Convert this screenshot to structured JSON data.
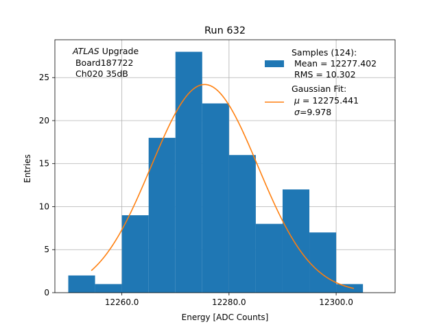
{
  "chart_data": {
    "type": "bar",
    "title": "Run 632",
    "xlabel": "Energy [ADC Counts]",
    "ylabel": "Entries",
    "xlim": [
      12247.5,
      12311.0
    ],
    "ylim": [
      0,
      29.4
    ],
    "xticks": [
      12260.0,
      12280.0,
      12300.0
    ],
    "xtick_labels": [
      "12260.0",
      "12280.0",
      "12300.0"
    ],
    "yticks": [
      0,
      5,
      10,
      15,
      20,
      25
    ],
    "grid": true,
    "histogram": {
      "name": "Samples (124):",
      "color": "#1f77b4",
      "bin_edges": [
        12250.0,
        12255.0,
        12260.0,
        12265.0,
        12270.0,
        12275.0,
        12280.0,
        12285.0,
        12290.0,
        12295.0,
        12300.0,
        12305.0
      ],
      "counts": [
        2,
        1,
        9,
        18,
        28,
        22,
        16,
        8,
        12,
        7,
        1
      ]
    },
    "fit": {
      "name": "Gaussian Fit:",
      "color": "#ff7f0e",
      "mu": 12275.441,
      "sigma": 9.978,
      "amplitude": 24.2,
      "x_range": [
        12254.3,
        12303.3
      ]
    },
    "annotation": {
      "line1_italic": "ATLAS",
      "line1_rest": " Upgrade",
      "line2": " Board187722",
      "line3": " Ch020 35dB"
    },
    "legend": {
      "placement": "top-right",
      "samples_title": "Samples (124):",
      "samples_mean": " Mean = 12277.402",
      "samples_rms": " RMS = 10.302",
      "fit_title": "Gaussian Fit:",
      "fit_mu_symbol": "μ",
      "fit_mu_rest": " = 12275.441",
      "fit_sigma_symbol": "σ",
      "fit_sigma_rest": "=9.978"
    }
  }
}
